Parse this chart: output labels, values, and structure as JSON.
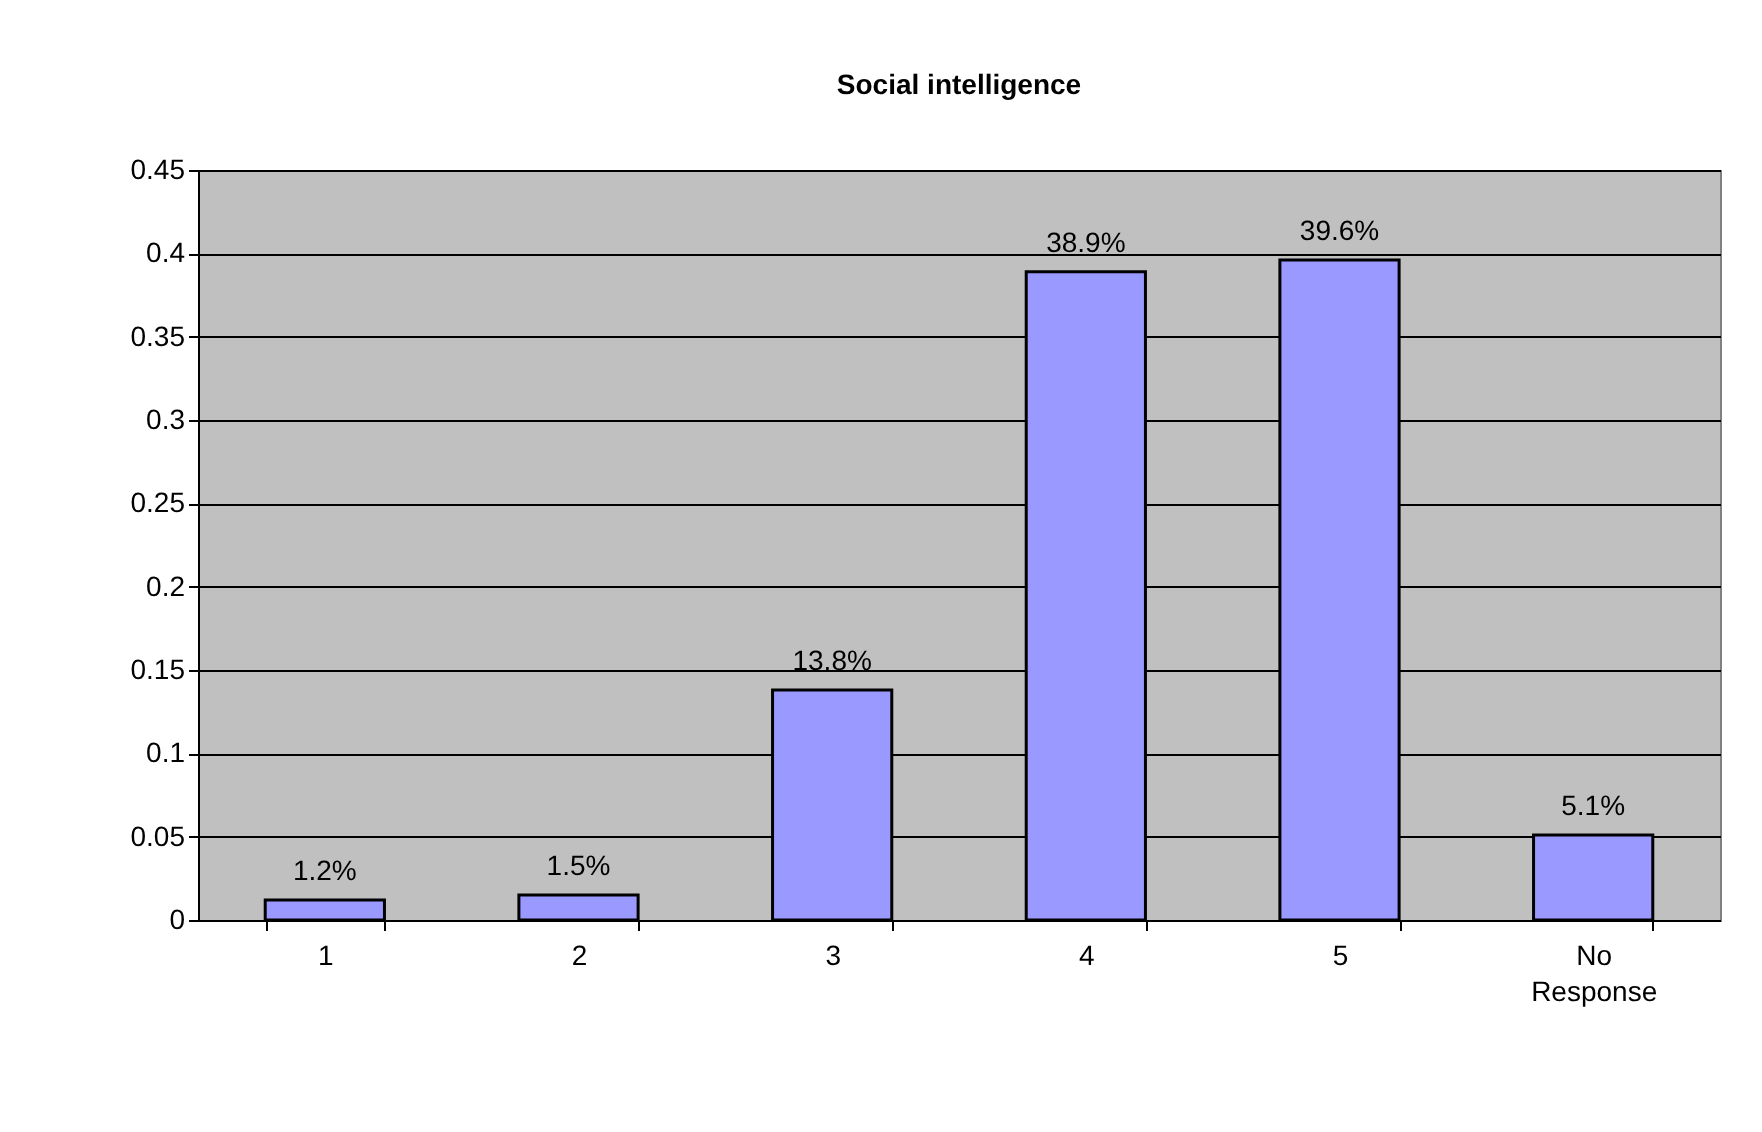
{
  "chart_data": {
    "type": "bar",
    "title": "Social intelligence",
    "categories": [
      "1",
      "2",
      "3",
      "4",
      "5",
      "No Response"
    ],
    "values": [
      0.012,
      0.015,
      0.138,
      0.389,
      0.396,
      0.051
    ],
    "value_labels": [
      "1.2%",
      "1.5%",
      "13.8%",
      "38.9%",
      "39.6%",
      "5.1%"
    ],
    "color": "#9999ff",
    "ylim": [
      0,
      0.45
    ],
    "yticks": [
      0,
      0.05,
      0.1,
      0.15,
      0.2,
      0.25,
      0.3,
      0.35,
      0.4,
      0.45
    ],
    "grid": "y"
  }
}
